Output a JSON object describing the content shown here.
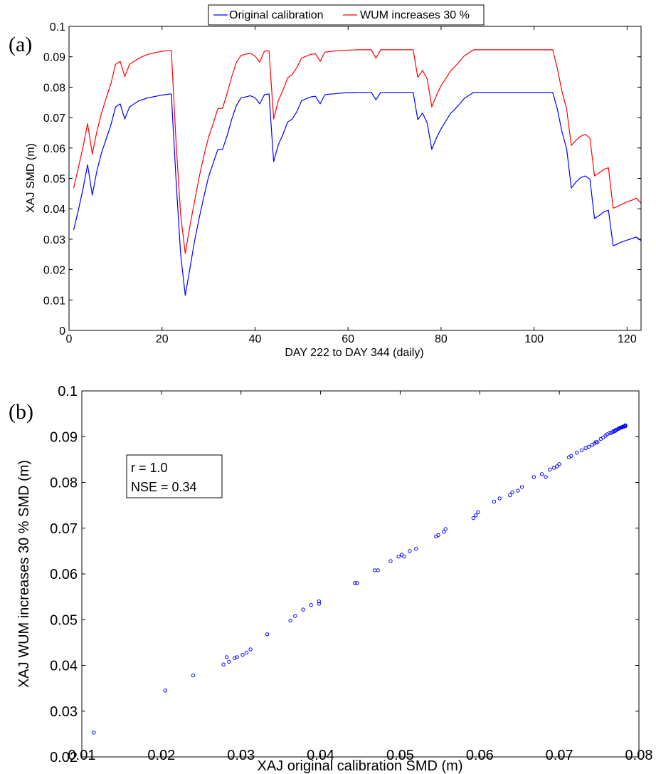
{
  "chart_data": [
    {
      "type": "line",
      "panel_label": "(a)",
      "xlabel": "DAY 222 to DAY 344 (daily)",
      "ylabel": "XAJ SMD (m)",
      "xlim": [
        0,
        123
      ],
      "ylim": [
        0,
        0.1
      ],
      "xticks": [
        "0",
        "20",
        "40",
        "60",
        "80",
        "100",
        "120"
      ],
      "yticks": [
        "0",
        "0.01",
        "0.02",
        "0.03",
        "0.04",
        "0.05",
        "0.06",
        "0.07",
        "0.08",
        "0.09",
        "0.1"
      ],
      "grid": false,
      "legend_position": "top-center",
      "series": [
        {
          "name": "Original calibration",
          "color": "#0000ff",
          "x": [
            1,
            2,
            3,
            4,
            5,
            6,
            7,
            8,
            9,
            10,
            11,
            12,
            13,
            14,
            15,
            16,
            17,
            18,
            19,
            20,
            21,
            22,
            23,
            24,
            25,
            26,
            27,
            28,
            29,
            30,
            31,
            32,
            33,
            34,
            35,
            36,
            37,
            38,
            39,
            40,
            41,
            42,
            43,
            44,
            45,
            46,
            47,
            48,
            49,
            50,
            51,
            52,
            53,
            54,
            55,
            56,
            57,
            58,
            59,
            60,
            61,
            62,
            63,
            64,
            65,
            66,
            67,
            68,
            69,
            70,
            71,
            72,
            73,
            74,
            75,
            76,
            77,
            78,
            79,
            80,
            81,
            82,
            83,
            84,
            85,
            86,
            87,
            88,
            89,
            90,
            91,
            92,
            93,
            94,
            95,
            96,
            97,
            98,
            99,
            100,
            101,
            102,
            103,
            104,
            105,
            106,
            107,
            108,
            109,
            110,
            111,
            112,
            113,
            114,
            115,
            116,
            117,
            118,
            119,
            120,
            121,
            122,
            123
          ],
          "y": [
            0.033,
            0.0395,
            0.0465,
            0.0545,
            0.0445,
            0.0525,
            0.0585,
            0.063,
            0.0675,
            0.0735,
            0.0745,
            0.0695,
            0.0735,
            0.0745,
            0.0755,
            0.076,
            0.0765,
            0.0768,
            0.0771,
            0.0774,
            0.0776,
            0.0778,
            0.05,
            0.025,
            0.0115,
            0.0205,
            0.0295,
            0.037,
            0.044,
            0.0505,
            0.055,
            0.0595,
            0.0595,
            0.064,
            0.0695,
            0.074,
            0.0765,
            0.0768,
            0.0772,
            0.0765,
            0.0745,
            0.0775,
            0.0778,
            0.0555,
            0.061,
            0.0645,
            0.0685,
            0.0695,
            0.072,
            0.0755,
            0.0762,
            0.0768,
            0.077,
            0.0745,
            0.0775,
            0.0777,
            0.0778,
            0.078,
            0.0781,
            0.0782,
            0.0782,
            0.0783,
            0.0783,
            0.0783,
            0.0783,
            0.0758,
            0.0783,
            0.0783,
            0.0783,
            0.0783,
            0.0783,
            0.0783,
            0.0783,
            0.0783,
            0.0693,
            0.0715,
            0.0683,
            0.0595,
            0.0633,
            0.0663,
            0.0688,
            0.0713,
            0.0728,
            0.0745,
            0.0763,
            0.0773,
            0.0783,
            0.0783,
            0.0783,
            0.0783,
            0.0783,
            0.0783,
            0.0783,
            0.0783,
            0.0783,
            0.0783,
            0.0783,
            0.0783,
            0.0783,
            0.0783,
            0.0783,
            0.0783,
            0.0783,
            0.0783,
            0.0728,
            0.0653,
            0.0598,
            0.0468,
            0.0488,
            0.0502,
            0.0508,
            0.0498,
            0.0368,
            0.0378,
            0.039,
            0.0395,
            0.0278,
            0.0285,
            0.0292,
            0.0297,
            0.0302,
            0.0307,
            0.0295
          ]
        },
        {
          "name": "WUM increases 30 %",
          "color": "#ff0000",
          "x": [
            1,
            2,
            3,
            4,
            5,
            6,
            7,
            8,
            9,
            10,
            11,
            12,
            13,
            14,
            15,
            16,
            17,
            18,
            19,
            20,
            21,
            22,
            23,
            24,
            25,
            26,
            27,
            28,
            29,
            30,
            31,
            32,
            33,
            34,
            35,
            36,
            37,
            38,
            39,
            40,
            41,
            42,
            43,
            44,
            45,
            46,
            47,
            48,
            49,
            50,
            51,
            52,
            53,
            54,
            55,
            56,
            57,
            58,
            59,
            60,
            61,
            62,
            63,
            64,
            65,
            66,
            67,
            68,
            69,
            70,
            71,
            72,
            73,
            74,
            75,
            76,
            77,
            78,
            79,
            80,
            81,
            82,
            83,
            84,
            85,
            86,
            87,
            88,
            89,
            90,
            91,
            92,
            93,
            94,
            95,
            96,
            97,
            98,
            99,
            100,
            101,
            102,
            103,
            104,
            105,
            106,
            107,
            108,
            109,
            110,
            111,
            112,
            113,
            114,
            115,
            116,
            117,
            118,
            119,
            120,
            121,
            122,
            123
          ],
          "y": [
            0.0468,
            0.0535,
            0.0602,
            0.068,
            0.058,
            0.0655,
            0.0715,
            0.0765,
            0.081,
            0.0875,
            0.0885,
            0.0835,
            0.0875,
            0.0885,
            0.0895,
            0.0902,
            0.0908,
            0.0912,
            0.0915,
            0.0918,
            0.092,
            0.0921,
            0.0625,
            0.038,
            0.0253,
            0.0345,
            0.0425,
            0.0505,
            0.0575,
            0.0635,
            0.068,
            0.073,
            0.073,
            0.078,
            0.0835,
            0.0882,
            0.0905,
            0.0908,
            0.0912,
            0.0902,
            0.0882,
            0.0918,
            0.092,
            0.0695,
            0.0755,
            0.079,
            0.083,
            0.0842,
            0.0865,
            0.0895,
            0.0902,
            0.0908,
            0.091,
            0.0885,
            0.0915,
            0.0917,
            0.0919,
            0.092,
            0.0921,
            0.0922,
            0.0922,
            0.0923,
            0.0923,
            0.0923,
            0.0923,
            0.0895,
            0.0923,
            0.0923,
            0.0923,
            0.0923,
            0.0923,
            0.0923,
            0.0923,
            0.0923,
            0.0832,
            0.0855,
            0.0828,
            0.0735,
            0.0773,
            0.0805,
            0.0828,
            0.0853,
            0.0868,
            0.0885,
            0.0903,
            0.0913,
            0.0923,
            0.0923,
            0.0923,
            0.0923,
            0.0923,
            0.0923,
            0.0923,
            0.0923,
            0.0923,
            0.0923,
            0.0923,
            0.0923,
            0.0923,
            0.0923,
            0.0923,
            0.0923,
            0.0923,
            0.0923,
            0.0862,
            0.0785,
            0.0728,
            0.0608,
            0.0625,
            0.0638,
            0.0645,
            0.0632,
            0.0508,
            0.0518,
            0.053,
            0.0535,
            0.0402,
            0.0408,
            0.0416,
            0.0423,
            0.0428,
            0.0435,
            0.0418
          ]
        }
      ]
    },
    {
      "type": "scatter",
      "panel_label": "(b)",
      "xlabel": "XAJ original calibration SMD (m)",
      "ylabel": "XAJ WUM increases 30 % SMD (m)",
      "xlim": [
        0.01,
        0.08
      ],
      "ylim": [
        0.02,
        0.1
      ],
      "xticks": [
        "0.01",
        "0.02",
        "0.03",
        "0.04",
        "0.05",
        "0.06",
        "0.07",
        "0.08"
      ],
      "yticks": [
        "0.02",
        "0.03",
        "0.04",
        "0.05",
        "0.06",
        "0.07",
        "0.08",
        "0.09",
        "0.1"
      ],
      "grid": false,
      "marker": "open-circle",
      "color": "#0000ff",
      "annotation": [
        "r = 1.0",
        "NSE = 0.34"
      ],
      "x": [
        0.0115,
        0.0205,
        0.024,
        0.0278,
        0.0282,
        0.0285,
        0.0292,
        0.0295,
        0.0302,
        0.0307,
        0.0312,
        0.0333,
        0.0362,
        0.0368,
        0.0378,
        0.0388,
        0.0398,
        0.0398,
        0.0443,
        0.0446,
        0.0468,
        0.0472,
        0.0488,
        0.0498,
        0.0502,
        0.0505,
        0.0512,
        0.052,
        0.0545,
        0.0548,
        0.0555,
        0.0557,
        0.0592,
        0.0595,
        0.0598,
        0.0618,
        0.0625,
        0.0638,
        0.0641,
        0.0648,
        0.0653,
        0.0668,
        0.0678,
        0.0683,
        0.0688,
        0.0693,
        0.0697,
        0.07,
        0.0712,
        0.0715,
        0.0722,
        0.0728,
        0.0733,
        0.0737,
        0.0741,
        0.0744,
        0.0746,
        0.0748,
        0.0752,
        0.0755,
        0.0758,
        0.076,
        0.0763,
        0.0765,
        0.0767,
        0.0768,
        0.077,
        0.0771,
        0.0772,
        0.0774,
        0.0775,
        0.0776,
        0.0777,
        0.0778,
        0.0779,
        0.078,
        0.0781,
        0.0782,
        0.0783,
        0.0783
      ],
      "y": [
        0.0253,
        0.0345,
        0.0378,
        0.0402,
        0.0418,
        0.0408,
        0.0416,
        0.0418,
        0.0423,
        0.0428,
        0.0435,
        0.0468,
        0.0498,
        0.0508,
        0.0522,
        0.0532,
        0.0535,
        0.054,
        0.058,
        0.058,
        0.0608,
        0.0608,
        0.0628,
        0.0638,
        0.0642,
        0.0638,
        0.065,
        0.0655,
        0.0682,
        0.0685,
        0.0692,
        0.0698,
        0.0722,
        0.0728,
        0.0735,
        0.0758,
        0.0765,
        0.0772,
        0.0778,
        0.0782,
        0.079,
        0.0812,
        0.0818,
        0.0812,
        0.0828,
        0.0832,
        0.0835,
        0.084,
        0.0855,
        0.0858,
        0.0865,
        0.087,
        0.0875,
        0.0878,
        0.0882,
        0.0885,
        0.0888,
        0.0888,
        0.0895,
        0.0898,
        0.0902,
        0.0905,
        0.0908,
        0.0908,
        0.091,
        0.0912,
        0.0912,
        0.0915,
        0.0915,
        0.0917,
        0.0918,
        0.0919,
        0.092,
        0.092,
        0.0921,
        0.0922,
        0.0922,
        0.0923,
        0.0923,
        0.0925
      ]
    }
  ]
}
